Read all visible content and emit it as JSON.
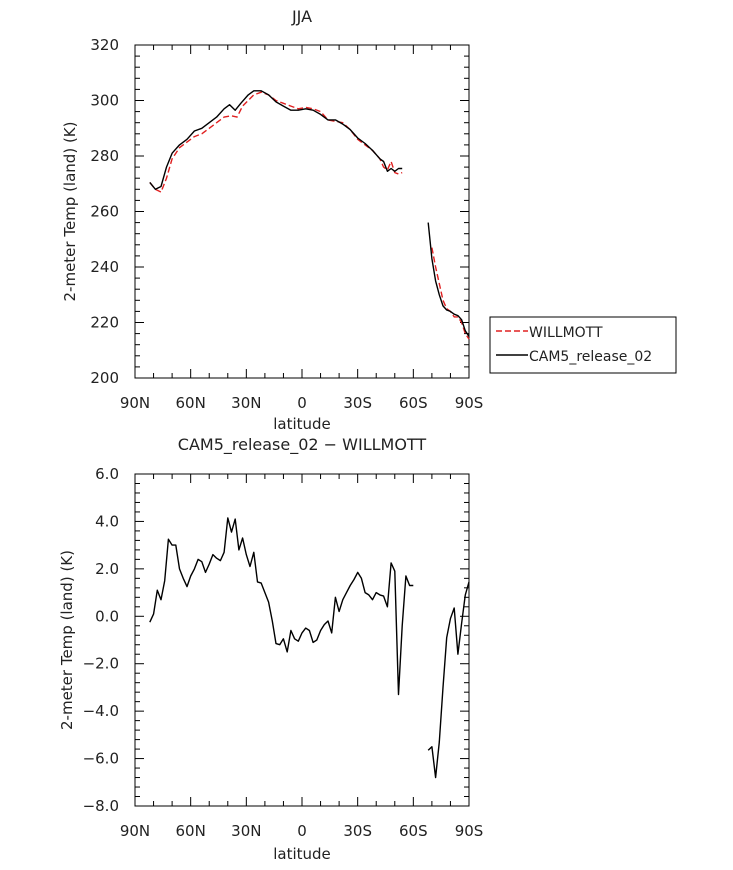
{
  "chart_data": [
    {
      "type": "line",
      "title": "JJA",
      "xlabel": "latitude",
      "ylabel": "2-meter Temp (land) (K)",
      "xlim": [
        -90,
        90
      ],
      "ylim": [
        200,
        320
      ],
      "x_tick_values": [
        -90,
        -60,
        -30,
        0,
        30,
        60,
        90
      ],
      "x_tick_labels": [
        "90N",
        "60N",
        "30N",
        "0",
        "30S",
        "60S",
        "90S"
      ],
      "y_tick_values": [
        200,
        220,
        240,
        260,
        280,
        300,
        320
      ],
      "y_tick_labels": [
        "200",
        "220",
        "240",
        "260",
        "280",
        "300",
        "320"
      ],
      "legend_position": "right",
      "series": [
        {
          "name": "WILLMOTT",
          "color": "#e02020",
          "dash": true,
          "segments": [
            [
              [
                -82,
                270.5
              ],
              [
                -79,
                268
              ],
              [
                -76,
                267
              ],
              [
                -73,
                272
              ],
              [
                -70,
                279
              ],
              [
                -66,
                283
              ],
              [
                -62,
                285
              ],
              [
                -58,
                287
              ],
              [
                -54,
                288
              ],
              [
                -50,
                290
              ],
              [
                -46,
                292
              ],
              [
                -42,
                294
              ],
              [
                -38,
                294.5
              ],
              [
                -35,
                294
              ],
              [
                -32,
                298
              ],
              [
                -29,
                300
              ],
              [
                -26,
                302
              ],
              [
                -22,
                303
              ],
              [
                -18,
                302
              ],
              [
                -14,
                300
              ],
              [
                -10,
                299
              ],
              [
                -6,
                298
              ],
              [
                -2,
                297
              ],
              [
                2,
                297.5
              ],
              [
                6,
                297
              ],
              [
                10,
                296
              ],
              [
                14,
                293
              ],
              [
                18,
                292.5
              ],
              [
                22,
                292
              ],
              [
                26,
                289.5
              ],
              [
                30,
                286
              ],
              [
                34,
                284
              ],
              [
                38,
                282
              ],
              [
                42,
                279
              ],
              [
                44,
                276
              ],
              [
                46,
                275
              ],
              [
                48,
                278
              ],
              [
                50,
                274
              ],
              [
                52,
                273.5
              ],
              [
                54,
                274
              ]
            ],
            [
              [
                70,
                247
              ],
              [
                72,
                240
              ],
              [
                74,
                234
              ],
              [
                76,
                228
              ],
              [
                78,
                225
              ],
              [
                80,
                224
              ],
              [
                82,
                222
              ],
              [
                84,
                222
              ],
              [
                86,
                220
              ],
              [
                88,
                216
              ],
              [
                90,
                214
              ]
            ]
          ]
        },
        {
          "name": "CAM5_release_02",
          "color": "#000000",
          "dash": false,
          "segments": [
            [
              [
                -82,
                270.5
              ],
              [
                -79,
                268
              ],
              [
                -76,
                269
              ],
              [
                -73,
                276
              ],
              [
                -70,
                281
              ],
              [
                -66,
                284
              ],
              [
                -62,
                286
              ],
              [
                -58,
                289
              ],
              [
                -54,
                290
              ],
              [
                -50,
                292
              ],
              [
                -46,
                294
              ],
              [
                -42,
                297
              ],
              [
                -39,
                298.5
              ],
              [
                -36,
                296.5
              ],
              [
                -33,
                299
              ],
              [
                -29,
                302
              ],
              [
                -26,
                303.5
              ],
              [
                -22,
                303.5
              ],
              [
                -18,
                302
              ],
              [
                -14,
                299.5
              ],
              [
                -10,
                298
              ],
              [
                -6,
                296.5
              ],
              [
                -2,
                296.5
              ],
              [
                2,
                297
              ],
              [
                6,
                296.5
              ],
              [
                10,
                295
              ],
              [
                14,
                293
              ],
              [
                18,
                293
              ],
              [
                22,
                291.5
              ],
              [
                26,
                289.5
              ],
              [
                30,
                286.5
              ],
              [
                34,
                284.5
              ],
              [
                38,
                282
              ],
              [
                42,
                279
              ],
              [
                44,
                278
              ],
              [
                46,
                274.5
              ],
              [
                48,
                275.5
              ],
              [
                50,
                274.5
              ],
              [
                52,
                275.5
              ],
              [
                54,
                275.5
              ]
            ],
            [
              [
                68,
                256
              ],
              [
                70,
                243
              ],
              [
                72,
                235
              ],
              [
                74,
                230
              ],
              [
                76,
                226
              ],
              [
                78,
                224.5
              ],
              [
                80,
                224
              ],
              [
                82,
                223
              ],
              [
                84,
                222.5
              ],
              [
                86,
                221
              ],
              [
                88,
                217
              ],
              [
                90,
                215
              ]
            ]
          ]
        }
      ]
    },
    {
      "type": "line",
      "title": "CAM5_release_02 − WILLMOTT",
      "xlabel": "latitude",
      "ylabel": "2-meter Temp (land) (K)",
      "xlim": [
        -90,
        90
      ],
      "ylim": [
        -8,
        6
      ],
      "x_tick_values": [
        -90,
        -60,
        -30,
        0,
        30,
        60,
        90
      ],
      "x_tick_labels": [
        "90N",
        "60N",
        "30N",
        "0",
        "30S",
        "60S",
        "90S"
      ],
      "y_tick_values": [
        -8,
        -6,
        -4,
        -2,
        0,
        2,
        4,
        6
      ],
      "y_tick_labels": [
        "−8.0",
        "−6.0",
        "−4.0",
        "−2.0",
        "0.0",
        "2.0",
        "4.0",
        "6.0"
      ],
      "series": [
        {
          "color": "#000000",
          "dash": false,
          "segments": [
            [
              [
                -82,
                -0.25
              ],
              [
                -80,
                0.1
              ],
              [
                -78,
                1.1
              ],
              [
                -76,
                0.7
              ],
              [
                -74,
                1.5
              ],
              [
                -72,
                3.25
              ],
              [
                -70,
                3.0
              ],
              [
                -68,
                3.0
              ],
              [
                -66,
                2.0
              ],
              [
                -64,
                1.6
              ],
              [
                -62,
                1.25
              ],
              [
                -60,
                1.7
              ],
              [
                -58,
                2.0
              ],
              [
                -56,
                2.4
              ],
              [
                -54,
                2.3
              ],
              [
                -52,
                1.85
              ],
              [
                -50,
                2.2
              ],
              [
                -48,
                2.6
              ],
              [
                -46,
                2.45
              ],
              [
                -44,
                2.35
              ],
              [
                -42,
                2.7
              ],
              [
                -40,
                4.15
              ],
              [
                -38,
                3.55
              ],
              [
                -36,
                4.1
              ],
              [
                -34,
                2.8
              ],
              [
                -32,
                3.3
              ],
              [
                -30,
                2.6
              ],
              [
                -28,
                2.1
              ],
              [
                -26,
                2.7
              ],
              [
                -24,
                1.45
              ],
              [
                -22,
                1.4
              ],
              [
                -20,
                1.0
              ],
              [
                -18,
                0.6
              ],
              [
                -16,
                -0.2
              ],
              [
                -14,
                -1.15
              ],
              [
                -12,
                -1.2
              ],
              [
                -10,
                -0.95
              ],
              [
                -8,
                -1.5
              ],
              [
                -6,
                -0.6
              ],
              [
                -4,
                -0.95
              ],
              [
                -2,
                -1.05
              ],
              [
                0,
                -0.7
              ],
              [
                2,
                -0.5
              ],
              [
                4,
                -0.6
              ],
              [
                6,
                -1.1
              ],
              [
                8,
                -1.0
              ],
              [
                10,
                -0.6
              ],
              [
                12,
                -0.35
              ],
              [
                14,
                -0.2
              ],
              [
                16,
                -0.7
              ],
              [
                18,
                0.8
              ],
              [
                20,
                0.2
              ],
              [
                22,
                0.7
              ],
              [
                24,
                1.0
              ],
              [
                26,
                1.3
              ],
              [
                28,
                1.55
              ],
              [
                30,
                1.85
              ],
              [
                32,
                1.6
              ],
              [
                34,
                1.0
              ],
              [
                36,
                0.9
              ],
              [
                38,
                0.7
              ],
              [
                40,
                1.0
              ],
              [
                42,
                0.9
              ],
              [
                44,
                0.85
              ],
              [
                46,
                0.4
              ],
              [
                48,
                2.25
              ],
              [
                50,
                1.9
              ],
              [
                52,
                -3.3
              ],
              [
                54,
                -0.4
              ],
              [
                56,
                1.7
              ],
              [
                58,
                1.3
              ],
              [
                60,
                1.3
              ]
            ],
            [
              [
                68,
                -5.65
              ],
              [
                70,
                -5.5
              ],
              [
                72,
                -6.8
              ],
              [
                74,
                -5.3
              ],
              [
                76,
                -3.0
              ],
              [
                78,
                -0.9
              ],
              [
                80,
                -0.1
              ],
              [
                82,
                0.35
              ],
              [
                84,
                -1.6
              ],
              [
                86,
                -0.3
              ],
              [
                88,
                0.9
              ],
              [
                90,
                1.45
              ]
            ]
          ]
        }
      ]
    }
  ]
}
